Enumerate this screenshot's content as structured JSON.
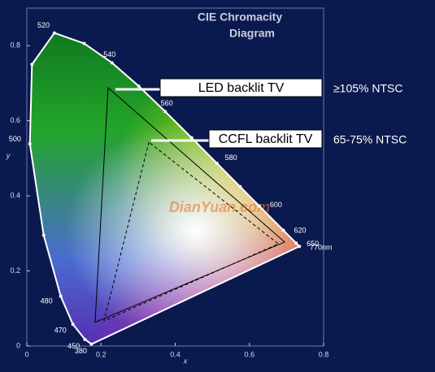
{
  "chart_data": {
    "type": "chromaticity",
    "title_lines": [
      "CIE Chromacity",
      "Diagram"
    ],
    "xlabel": "x",
    "ylabel": "y",
    "xlim": [
      0,
      0.8
    ],
    "ylim": [
      0,
      0.9
    ],
    "xticks": [
      0,
      0.2,
      0.4,
      0.6,
      0.8
    ],
    "yticks": [
      0,
      0.2,
      0.4,
      0.6,
      0.8
    ],
    "watermark": "DianYuan.com",
    "locus": {
      "color": "#ffffff",
      "x": [
        0.1741,
        0.1566,
        0.1241,
        0.0913,
        0.0454,
        0.0082,
        0.0139,
        0.0743,
        0.1547,
        0.2296,
        0.3016,
        0.3731,
        0.4441,
        0.5125,
        0.5752,
        0.627,
        0.6915,
        0.726,
        0.7347
      ],
      "y": [
        0.005,
        0.0177,
        0.0578,
        0.1327,
        0.295,
        0.5384,
        0.7502,
        0.8338,
        0.8059,
        0.7543,
        0.6923,
        0.6245,
        0.5547,
        0.4866,
        0.4242,
        0.3725,
        0.3083,
        0.274,
        0.2653
      ],
      "labels": [
        "380",
        "450",
        "470",
        "480",
        null,
        "500",
        null,
        "520",
        null,
        "540",
        null,
        "560",
        null,
        "580",
        null,
        "600",
        "620",
        "650",
        "770nm"
      ]
    },
    "series": [
      {
        "name": "LED backlit TV",
        "coverage": "≥105% NTSC",
        "color": "#000000",
        "dashed": false,
        "x": [
          0.219,
          0.184,
          0.695
        ],
        "y": [
          0.688,
          0.063,
          0.277
        ]
      },
      {
        "name": "CCFL backlit TV",
        "coverage": "65-75% NTSC",
        "color": "#000000",
        "dashed": true,
        "x": [
          0.329,
          0.208,
          0.678
        ],
        "y": [
          0.543,
          0.067,
          0.272
        ]
      }
    ]
  }
}
